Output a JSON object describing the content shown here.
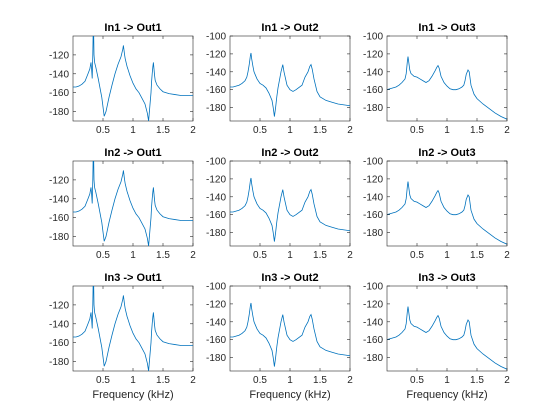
{
  "figure": {
    "background": "#ffffff",
    "line_color": "#0072bd",
    "axis_color": "#262626"
  },
  "chart_data": [
    {
      "type": "line",
      "title": "In1 -> Out1",
      "xlabel": "",
      "xlim": [
        0,
        2
      ],
      "ylim": [
        -190,
        -100
      ],
      "xticks": [
        0.5,
        1,
        1.5,
        2
      ],
      "yticks": [
        -180,
        -160,
        -140,
        -120
      ],
      "x": [
        0.0,
        0.05,
        0.1,
        0.15,
        0.2,
        0.25,
        0.28,
        0.3,
        0.31,
        0.32,
        0.33,
        0.34,
        0.35,
        0.36,
        0.38,
        0.42,
        0.48,
        0.52,
        0.55,
        0.6,
        0.65,
        0.7,
        0.75,
        0.8,
        0.83,
        0.84,
        0.85,
        0.86,
        0.87,
        0.9,
        0.95,
        1.0,
        1.05,
        1.1,
        1.15,
        1.2,
        1.24,
        1.26,
        1.28,
        1.3,
        1.31,
        1.32,
        1.33,
        1.34,
        1.35,
        1.36,
        1.37,
        1.4,
        1.45,
        1.5,
        1.6,
        1.7,
        1.8,
        1.9,
        2.0
      ],
      "y": [
        -154,
        -154,
        -153,
        -151,
        -148,
        -140,
        -135,
        -128,
        -135,
        -145,
        -120,
        -80,
        -120,
        -128,
        -133,
        -145,
        -165,
        -185,
        -180,
        -165,
        -152,
        -140,
        -130,
        -122,
        -114,
        -110,
        -115,
        -120,
        -124,
        -132,
        -142,
        -150,
        -156,
        -160,
        -166,
        -172,
        -182,
        -190,
        -175,
        -160,
        -148,
        -140,
        -133,
        -128,
        -135,
        -142,
        -147,
        -152,
        -156,
        -159,
        -161,
        -162,
        -163,
        -163,
        -163
      ]
    },
    {
      "type": "line",
      "title": "In1 -> Out2",
      "xlabel": "",
      "xlim": [
        0,
        2
      ],
      "ylim": [
        -195,
        -100
      ],
      "xticks": [
        0.5,
        1,
        1.5,
        2
      ],
      "yticks": [
        -180,
        -160,
        -140,
        -120,
        -100
      ],
      "x": [
        0.0,
        0.05,
        0.1,
        0.15,
        0.2,
        0.25,
        0.28,
        0.3,
        0.32,
        0.34,
        0.35,
        0.36,
        0.38,
        0.4,
        0.45,
        0.5,
        0.55,
        0.6,
        0.65,
        0.7,
        0.72,
        0.74,
        0.76,
        0.78,
        0.8,
        0.85,
        0.88,
        0.9,
        0.95,
        1.0,
        1.05,
        1.1,
        1.2,
        1.25,
        1.3,
        1.33,
        1.35,
        1.37,
        1.4,
        1.45,
        1.5,
        1.6,
        1.7,
        1.8,
        1.9,
        2.0
      ],
      "y": [
        -157,
        -157,
        -156,
        -155,
        -153,
        -150,
        -146,
        -140,
        -132,
        -122,
        -119,
        -125,
        -133,
        -140,
        -148,
        -153,
        -155,
        -158,
        -164,
        -172,
        -180,
        -190,
        -180,
        -168,
        -158,
        -140,
        -132,
        -140,
        -155,
        -160,
        -162,
        -160,
        -155,
        -146,
        -140,
        -134,
        -132,
        -137,
        -148,
        -162,
        -168,
        -172,
        -174,
        -176,
        -177,
        -178
      ]
    },
    {
      "type": "line",
      "title": "In1 -> Out3",
      "xlabel": "",
      "xlim": [
        0,
        2
      ],
      "ylim": [
        -195,
        -100
      ],
      "xticks": [
        0.5,
        1,
        1.5,
        2
      ],
      "yticks": [
        -180,
        -160,
        -140,
        -120,
        -100
      ],
      "x": [
        0.0,
        0.05,
        0.1,
        0.15,
        0.2,
        0.25,
        0.3,
        0.32,
        0.34,
        0.35,
        0.36,
        0.38,
        0.4,
        0.45,
        0.5,
        0.55,
        0.6,
        0.65,
        0.7,
        0.75,
        0.8,
        0.83,
        0.85,
        0.87,
        0.9,
        0.95,
        1.0,
        1.05,
        1.1,
        1.15,
        1.2,
        1.25,
        1.28,
        1.3,
        1.32,
        1.35,
        1.37,
        1.4,
        1.45,
        1.5,
        1.6,
        1.7,
        1.8,
        1.9,
        2.0
      ],
      "y": [
        -160,
        -159,
        -158,
        -157,
        -155,
        -152,
        -148,
        -142,
        -128,
        -123,
        -128,
        -138,
        -142,
        -145,
        -146,
        -148,
        -150,
        -152,
        -150,
        -145,
        -139,
        -135,
        -133,
        -136,
        -145,
        -152,
        -156,
        -159,
        -160,
        -160,
        -159,
        -157,
        -155,
        -150,
        -143,
        -138,
        -140,
        -155,
        -165,
        -170,
        -176,
        -181,
        -186,
        -190,
        -193
      ]
    },
    {
      "type": "line",
      "title": "In2 -> Out1",
      "xlabel": "",
      "xlim": [
        0,
        2
      ],
      "ylim": [
        -190,
        -100
      ],
      "xticks": [
        0.5,
        1,
        1.5,
        2
      ],
      "yticks": [
        -180,
        -160,
        -140,
        -120
      ],
      "x": [
        0.0,
        0.05,
        0.1,
        0.15,
        0.2,
        0.25,
        0.28,
        0.3,
        0.31,
        0.32,
        0.33,
        0.34,
        0.35,
        0.36,
        0.38,
        0.42,
        0.48,
        0.52,
        0.55,
        0.6,
        0.65,
        0.7,
        0.75,
        0.8,
        0.83,
        0.84,
        0.85,
        0.86,
        0.87,
        0.9,
        0.95,
        1.0,
        1.05,
        1.1,
        1.15,
        1.2,
        1.24,
        1.26,
        1.28,
        1.3,
        1.31,
        1.32,
        1.33,
        1.34,
        1.35,
        1.36,
        1.37,
        1.4,
        1.45,
        1.5,
        1.6,
        1.7,
        1.8,
        1.9,
        2.0
      ],
      "y": [
        -154,
        -154,
        -153,
        -151,
        -148,
        -140,
        -135,
        -128,
        -135,
        -145,
        -120,
        -80,
        -120,
        -128,
        -133,
        -145,
        -165,
        -185,
        -180,
        -165,
        -152,
        -140,
        -130,
        -122,
        -114,
        -110,
        -115,
        -120,
        -124,
        -132,
        -142,
        -150,
        -156,
        -160,
        -166,
        -172,
        -182,
        -190,
        -175,
        -160,
        -148,
        -140,
        -133,
        -128,
        -135,
        -142,
        -147,
        -152,
        -156,
        -159,
        -161,
        -162,
        -163,
        -163,
        -163
      ]
    },
    {
      "type": "line",
      "title": "In2 -> Out2",
      "xlabel": "",
      "xlim": [
        0,
        2
      ],
      "ylim": [
        -195,
        -100
      ],
      "xticks": [
        0.5,
        1,
        1.5,
        2
      ],
      "yticks": [
        -180,
        -160,
        -140,
        -120,
        -100
      ],
      "x": [
        0.0,
        0.05,
        0.1,
        0.15,
        0.2,
        0.25,
        0.28,
        0.3,
        0.32,
        0.34,
        0.35,
        0.36,
        0.38,
        0.4,
        0.45,
        0.5,
        0.55,
        0.6,
        0.65,
        0.7,
        0.72,
        0.74,
        0.76,
        0.78,
        0.8,
        0.85,
        0.88,
        0.9,
        0.95,
        1.0,
        1.05,
        1.1,
        1.2,
        1.25,
        1.3,
        1.33,
        1.35,
        1.37,
        1.4,
        1.45,
        1.5,
        1.6,
        1.7,
        1.8,
        1.9,
        2.0
      ],
      "y": [
        -157,
        -157,
        -156,
        -155,
        -153,
        -150,
        -146,
        -140,
        -132,
        -122,
        -119,
        -125,
        -133,
        -140,
        -148,
        -153,
        -155,
        -158,
        -164,
        -172,
        -180,
        -190,
        -180,
        -168,
        -158,
        -140,
        -132,
        -140,
        -155,
        -160,
        -162,
        -160,
        -155,
        -146,
        -140,
        -134,
        -132,
        -137,
        -148,
        -162,
        -168,
        -172,
        -174,
        -176,
        -177,
        -178
      ]
    },
    {
      "type": "line",
      "title": "In2 -> Out3",
      "xlabel": "",
      "xlim": [
        0,
        2
      ],
      "ylim": [
        -195,
        -100
      ],
      "xticks": [
        0.5,
        1,
        1.5,
        2
      ],
      "yticks": [
        -180,
        -160,
        -140,
        -120,
        -100
      ],
      "x": [
        0.0,
        0.05,
        0.1,
        0.15,
        0.2,
        0.25,
        0.3,
        0.32,
        0.34,
        0.35,
        0.36,
        0.38,
        0.4,
        0.45,
        0.5,
        0.55,
        0.6,
        0.65,
        0.7,
        0.75,
        0.8,
        0.83,
        0.85,
        0.87,
        0.9,
        0.95,
        1.0,
        1.05,
        1.1,
        1.15,
        1.2,
        1.25,
        1.28,
        1.3,
        1.32,
        1.35,
        1.37,
        1.4,
        1.45,
        1.5,
        1.6,
        1.7,
        1.8,
        1.9,
        2.0
      ],
      "y": [
        -160,
        -159,
        -158,
        -157,
        -155,
        -152,
        -148,
        -142,
        -128,
        -123,
        -128,
        -138,
        -142,
        -145,
        -146,
        -148,
        -150,
        -152,
        -150,
        -145,
        -139,
        -135,
        -133,
        -136,
        -145,
        -152,
        -156,
        -159,
        -160,
        -160,
        -159,
        -157,
        -155,
        -150,
        -143,
        -138,
        -140,
        -155,
        -165,
        -170,
        -176,
        -181,
        -186,
        -190,
        -193
      ]
    },
    {
      "type": "line",
      "title": "In3 -> Out1",
      "xlabel": "Frequency (kHz)",
      "xlim": [
        0,
        2
      ],
      "ylim": [
        -190,
        -100
      ],
      "xticks": [
        0.5,
        1,
        1.5,
        2
      ],
      "yticks": [
        -180,
        -160,
        -140,
        -120
      ],
      "x": [
        0.0,
        0.05,
        0.1,
        0.15,
        0.2,
        0.25,
        0.28,
        0.3,
        0.31,
        0.32,
        0.33,
        0.34,
        0.35,
        0.36,
        0.38,
        0.42,
        0.48,
        0.52,
        0.55,
        0.6,
        0.65,
        0.7,
        0.75,
        0.8,
        0.83,
        0.84,
        0.85,
        0.86,
        0.87,
        0.9,
        0.95,
        1.0,
        1.05,
        1.1,
        1.15,
        1.2,
        1.24,
        1.26,
        1.28,
        1.3,
        1.31,
        1.32,
        1.33,
        1.34,
        1.35,
        1.36,
        1.37,
        1.4,
        1.45,
        1.5,
        1.6,
        1.7,
        1.8,
        1.9,
        2.0
      ],
      "y": [
        -154,
        -154,
        -153,
        -151,
        -148,
        -140,
        -135,
        -128,
        -135,
        -145,
        -120,
        -80,
        -120,
        -128,
        -133,
        -145,
        -165,
        -185,
        -180,
        -165,
        -152,
        -140,
        -130,
        -122,
        -114,
        -110,
        -115,
        -120,
        -124,
        -132,
        -142,
        -150,
        -156,
        -160,
        -166,
        -172,
        -182,
        -190,
        -175,
        -160,
        -148,
        -140,
        -133,
        -128,
        -135,
        -142,
        -147,
        -152,
        -156,
        -159,
        -161,
        -162,
        -163,
        -163,
        -163
      ]
    },
    {
      "type": "line",
      "title": "In3 -> Out2",
      "xlabel": "Frequency (kHz)",
      "xlim": [
        0,
        2
      ],
      "ylim": [
        -195,
        -100
      ],
      "xticks": [
        0.5,
        1,
        1.5,
        2
      ],
      "yticks": [
        -180,
        -160,
        -140,
        -120,
        -100
      ],
      "x": [
        0.0,
        0.05,
        0.1,
        0.15,
        0.2,
        0.25,
        0.28,
        0.3,
        0.32,
        0.34,
        0.35,
        0.36,
        0.38,
        0.4,
        0.45,
        0.5,
        0.55,
        0.6,
        0.65,
        0.7,
        0.72,
        0.74,
        0.76,
        0.78,
        0.8,
        0.85,
        0.88,
        0.9,
        0.95,
        1.0,
        1.05,
        1.1,
        1.2,
        1.25,
        1.3,
        1.33,
        1.35,
        1.37,
        1.4,
        1.45,
        1.5,
        1.6,
        1.7,
        1.8,
        1.9,
        2.0
      ],
      "y": [
        -157,
        -157,
        -156,
        -155,
        -153,
        -150,
        -146,
        -140,
        -132,
        -122,
        -119,
        -125,
        -133,
        -140,
        -148,
        -153,
        -155,
        -158,
        -164,
        -172,
        -180,
        -190,
        -180,
        -168,
        -158,
        -140,
        -132,
        -140,
        -155,
        -160,
        -162,
        -160,
        -155,
        -146,
        -140,
        -134,
        -132,
        -137,
        -148,
        -162,
        -168,
        -172,
        -174,
        -176,
        -177,
        -178
      ]
    },
    {
      "type": "line",
      "title": "In3 -> Out3",
      "xlabel": "Frequency (kHz)",
      "xlim": [
        0,
        2
      ],
      "ylim": [
        -195,
        -100
      ],
      "xticks": [
        0.5,
        1,
        1.5,
        2
      ],
      "yticks": [
        -180,
        -160,
        -140,
        -120,
        -100
      ],
      "x": [
        0.0,
        0.05,
        0.1,
        0.15,
        0.2,
        0.25,
        0.3,
        0.32,
        0.34,
        0.35,
        0.36,
        0.38,
        0.4,
        0.45,
        0.5,
        0.55,
        0.6,
        0.65,
        0.7,
        0.75,
        0.8,
        0.83,
        0.85,
        0.87,
        0.9,
        0.95,
        1.0,
        1.05,
        1.1,
        1.15,
        1.2,
        1.25,
        1.28,
        1.3,
        1.32,
        1.35,
        1.37,
        1.4,
        1.45,
        1.5,
        1.6,
        1.7,
        1.8,
        1.9,
        2.0
      ],
      "y": [
        -160,
        -159,
        -158,
        -157,
        -155,
        -152,
        -148,
        -142,
        -128,
        -123,
        -128,
        -138,
        -142,
        -145,
        -146,
        -148,
        -150,
        -152,
        -150,
        -145,
        -139,
        -135,
        -133,
        -136,
        -145,
        -152,
        -156,
        -159,
        -160,
        -160,
        -159,
        -157,
        -155,
        -150,
        -143,
        -138,
        -140,
        -155,
        -165,
        -170,
        -176,
        -181,
        -186,
        -190,
        -193
      ]
    }
  ]
}
